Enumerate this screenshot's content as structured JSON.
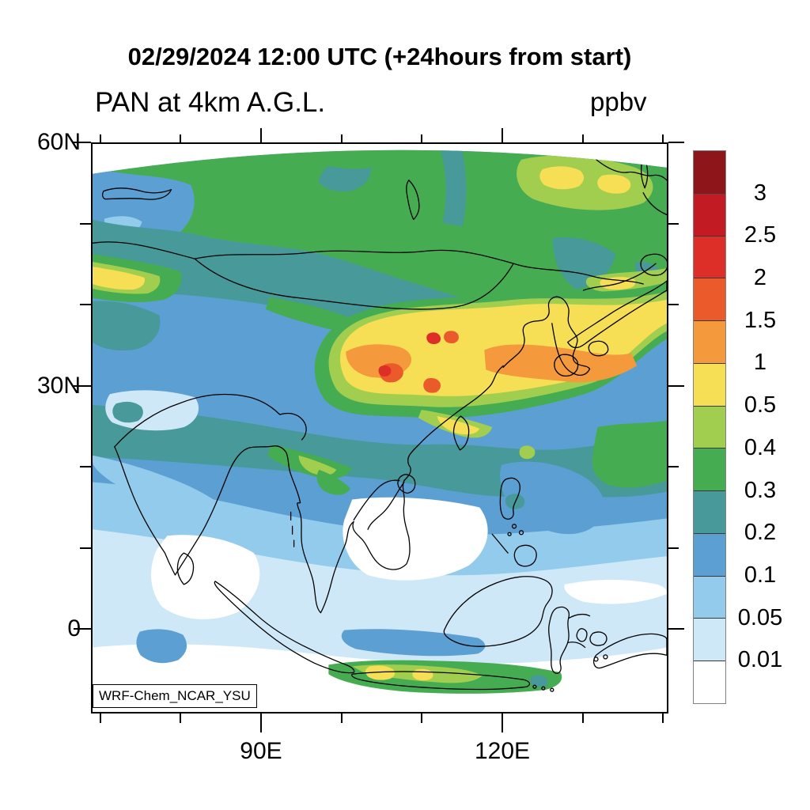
{
  "header": {
    "line1": "02/29/2024 12:00 UTC (+24hours from start)",
    "line2": "PAN at 4km A.G.L.",
    "units": "ppbv"
  },
  "watermark": "WRF-Chem_NCAR_YSU",
  "axes": {
    "y_ticks": [
      {
        "label": "60N"
      },
      {
        "label": "30N"
      },
      {
        "label": "0"
      }
    ],
    "x_ticks": [
      {
        "label": "90E"
      },
      {
        "label": "120E"
      }
    ]
  },
  "chart_data": {
    "type": "heatmap",
    "title": "02/29/2024 12:00 UTC (+24hours from start)",
    "subtitle": "PAN at 4km A.G.L.",
    "units": "ppbv",
    "model_label": "WRF-Chem_NCAR_YSU",
    "projection_note": "curved model grid over East/South Asia, top edge arcs",
    "x_axis": {
      "tick_labels": [
        "90E",
        "120E"
      ],
      "minor_tick_interval_deg": 10
    },
    "y_axis": {
      "tick_labels": [
        "60N",
        "30N",
        "0"
      ],
      "minor_tick_interval_deg": 10
    },
    "contour_levels_ppbv": [
      0.01,
      0.05,
      0.1,
      0.2,
      0.3,
      0.4,
      0.5,
      1,
      1.5,
      2,
      2.5,
      3
    ],
    "colorbar_tick_labels": [
      "3",
      "2.5",
      "2",
      "1.5",
      "1",
      "0.5",
      "0.4",
      "0.3",
      "0.2",
      "0.1",
      "0.05",
      "0.01"
    ],
    "colorbar_segments_top_to_bottom": [
      {
        "range": "gt3",
        "color": "#8E1519"
      },
      {
        "range": "2.5-3",
        "color": "#C21B24"
      },
      {
        "range": "2-2.5",
        "color": "#DD2F28"
      },
      {
        "range": "1.5-2",
        "color": "#EA5A2B"
      },
      {
        "range": "1-1.5",
        "color": "#F49A3D"
      },
      {
        "range": "0.5-1",
        "color": "#F6DF55"
      },
      {
        "range": "0.4-0.5",
        "color": "#A2CE4F"
      },
      {
        "range": "0.3-0.4",
        "color": "#46AC52"
      },
      {
        "range": "0.2-0.3",
        "color": "#47999A"
      },
      {
        "range": "0.1-0.2",
        "color": "#5C9FD3"
      },
      {
        "range": "0.05-0.1",
        "color": "#92CBEC"
      },
      {
        "range": "0.01-0.05",
        "color": "#CFE8F7"
      },
      {
        "range": "lt0.01",
        "color": "#FFFFFF"
      }
    ],
    "palette_map": {
      "lt0.01": "#FFFFFF",
      "0.01-0.05": "#CFE8F7",
      "0.05-0.1": "#92CBEC",
      "0.1-0.2": "#5C9FD3",
      "0.2-0.3": "#47999A",
      "0.3-0.4": "#46AC52",
      "0.4-0.5": "#A2CE4F",
      "0.5-1": "#F6DF55",
      "1-1.5": "#F49A3D",
      "1.5-2": "#EA5A2B",
      "2-2.5": "#DD2F28",
      "2.5-3": "#C21B24",
      "gt3": "#8E1519"
    },
    "field_summary": [
      {
        "area": "Siberia band 50-60N",
        "ppbv": "0.3-0.4 with 0.2-0.3 patches"
      },
      {
        "area": "Amur / Okhotsk region (top right)",
        "ppbv": "0.4-1 yellow patches"
      },
      {
        "area": "Central Asia - Mongolia 40-50N",
        "ppbv": "0.1-0.3"
      },
      {
        "area": "West edge ~45N streak",
        "ppbv": "0.5-1"
      },
      {
        "area": "East China - Yellow Sea - Korea - Japan plume (30-40N)",
        "ppbv": "0.5-1.5 with cores 1.5-2.5"
      },
      {
        "area": "Tibet / southern China band (22-30N)",
        "ppbv": "0.2-0.4"
      },
      {
        "area": "Indian subcontinent",
        "ppbv": "0.1-0.2 with 0.05-0.1 streaks"
      },
      {
        "area": "Bay of Bengal / South China Sea",
        "ppbv": "<0.01-0.05"
      },
      {
        "area": "Tropical seas (bottom of domain)",
        "ppbv": "<0.01-0.1"
      },
      {
        "area": "Java / Indonesia",
        "ppbv": "0.3-0.5 with local 0.5-1 spots"
      }
    ]
  }
}
